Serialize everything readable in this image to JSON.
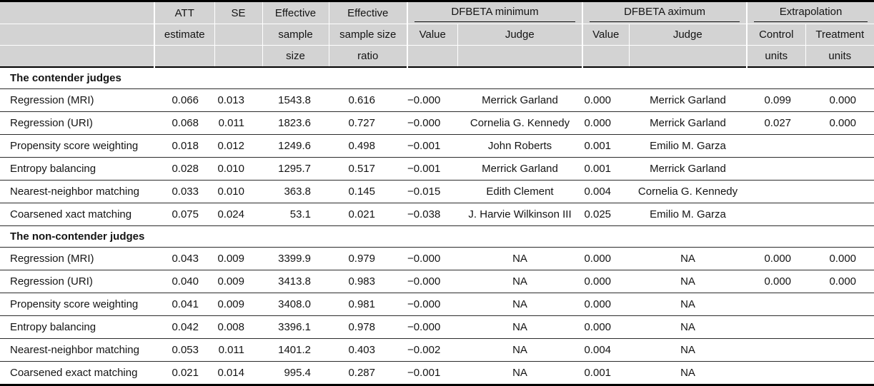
{
  "colors": {
    "header_bg": "#d3d3d3",
    "thick_rule": "#000000",
    "row_line": "#2b2b2b",
    "text": "#141414"
  },
  "header": {
    "row1": {
      "att": "ATT",
      "se": "SE",
      "effective_a": "Effective",
      "effective_b": "Effective",
      "dfbeta_min": "DFBETA minimum",
      "dfbeta_max": "DFBETA aximum",
      "extrapolation": "Extrapolation"
    },
    "row2": {
      "estimate": "estimate",
      "sample": "sample",
      "sample_size": "sample size",
      "value": "Value",
      "judge": "Judge",
      "control": "Control",
      "treatment": "Treatment"
    },
    "row3": {
      "size": "size",
      "ratio": "ratio",
      "units": "units"
    }
  },
  "sections": [
    {
      "title": "The contender judges",
      "rows": [
        {
          "label": "Regression (MRI)",
          "att": "0.066",
          "se": "0.013",
          "ess": "1543.8",
          "ratio": "0.616",
          "dfb_min_value": "−0.000",
          "dfb_min_judge": "Merrick Garland",
          "dfb_max_value": "0.000",
          "dfb_max_judge": "Merrick Garland",
          "extrap_control": "0.099",
          "extrap_treatment": "0.000"
        },
        {
          "label": "Regression (URI)",
          "att": "0.068",
          "se": "0.011",
          "ess": "1823.6",
          "ratio": "0.727",
          "dfb_min_value": "−0.000",
          "dfb_min_judge": "Cornelia G. Kennedy",
          "dfb_max_value": "0.000",
          "dfb_max_judge": "Merrick Garland",
          "extrap_control": "0.027",
          "extrap_treatment": "0.000"
        },
        {
          "label": "Propensity score weighting",
          "att": "0.018",
          "se": "0.012",
          "ess": "1249.6",
          "ratio": "0.498",
          "dfb_min_value": "−0.001",
          "dfb_min_judge": "John Roberts",
          "dfb_max_value": "0.001",
          "dfb_max_judge": "Emilio M. Garza",
          "extrap_control": "",
          "extrap_treatment": ""
        },
        {
          "label": "Entropy balancing",
          "att": "0.028",
          "se": "0.010",
          "ess": "1295.7",
          "ratio": "0.517",
          "dfb_min_value": "−0.001",
          "dfb_min_judge": "Merrick Garland",
          "dfb_max_value": "0.001",
          "dfb_max_judge": "Merrick Garland",
          "extrap_control": "",
          "extrap_treatment": ""
        },
        {
          "label": "Nearest-neighbor matching",
          "att": "0.033",
          "se": "0.010",
          "ess": "363.8",
          "ratio": "0.145",
          "dfb_min_value": "−0.015",
          "dfb_min_judge": "Edith Clement",
          "dfb_max_value": "0.004",
          "dfb_max_judge": "Cornelia G. Kennedy",
          "extrap_control": "",
          "extrap_treatment": ""
        },
        {
          "label": "Coarsened xact matching",
          "att": "0.075",
          "se": "0.024",
          "ess": "53.1",
          "ratio": "0.021",
          "dfb_min_value": "−0.038",
          "dfb_min_judge": "J. Harvie Wilkinson III",
          "dfb_max_value": "0.025",
          "dfb_max_judge": "Emilio M. Garza",
          "extrap_control": "",
          "extrap_treatment": ""
        }
      ]
    },
    {
      "title": "The non-contender judges",
      "rows": [
        {
          "label": "Regression (MRI)",
          "att": "0.043",
          "se": "0.009",
          "ess": "3399.9",
          "ratio": "0.979",
          "dfb_min_value": "−0.000",
          "dfb_min_judge": "NA",
          "dfb_max_value": "0.000",
          "dfb_max_judge": "NA",
          "extrap_control": "0.000",
          "extrap_treatment": "0.000"
        },
        {
          "label": "Regression (URI)",
          "att": "0.040",
          "se": "0.009",
          "ess": "3413.8",
          "ratio": "0.983",
          "dfb_min_value": "−0.000",
          "dfb_min_judge": "NA",
          "dfb_max_value": "0.000",
          "dfb_max_judge": "NA",
          "extrap_control": "0.000",
          "extrap_treatment": "0.000"
        },
        {
          "label": "Propensity score weighting",
          "att": "0.041",
          "se": "0.009",
          "ess": "3408.0",
          "ratio": "0.981",
          "dfb_min_value": "−0.000",
          "dfb_min_judge": "NA",
          "dfb_max_value": "0.000",
          "dfb_max_judge": "NA",
          "extrap_control": "",
          "extrap_treatment": ""
        },
        {
          "label": "Entropy balancing",
          "att": "0.042",
          "se": "0.008",
          "ess": "3396.1",
          "ratio": "0.978",
          "dfb_min_value": "−0.000",
          "dfb_min_judge": "NA",
          "dfb_max_value": "0.000",
          "dfb_max_judge": "NA",
          "extrap_control": "",
          "extrap_treatment": ""
        },
        {
          "label": "Nearest-neighbor matching",
          "att": "0.053",
          "se": "0.011",
          "ess": "1401.2",
          "ratio": "0.403",
          "dfb_min_value": "−0.002",
          "dfb_min_judge": "NA",
          "dfb_max_value": "0.004",
          "dfb_max_judge": "NA",
          "extrap_control": "",
          "extrap_treatment": ""
        },
        {
          "label": "Coarsened exact matching",
          "att": "0.021",
          "se": "0.014",
          "ess": "995.4",
          "ratio": "0.287",
          "dfb_min_value": "−0.001",
          "dfb_min_judge": "NA",
          "dfb_max_value": "0.001",
          "dfb_max_judge": "NA",
          "extrap_control": "",
          "extrap_treatment": ""
        }
      ]
    }
  ]
}
